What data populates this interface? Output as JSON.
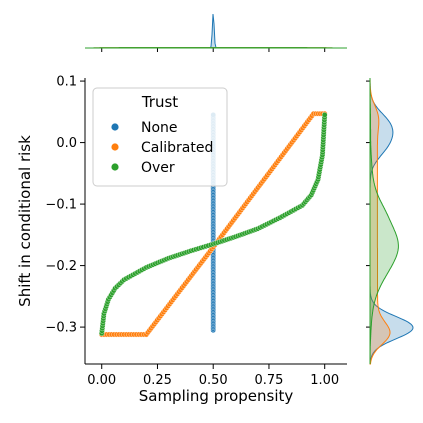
{
  "chart_data": {
    "type": "scatter",
    "title": "",
    "xlabel": "Sampling propensity",
    "ylabel": "Shift in conditional risk",
    "xlim": [
      -0.075,
      1.1
    ],
    "ylim": [
      -0.36,
      0.105
    ],
    "x_ticks": [
      0.0,
      0.25,
      0.5,
      0.75,
      1.0
    ],
    "x_tick_labels": [
      "0.00",
      "0.25",
      "0.50",
      "0.75",
      "1.00"
    ],
    "y_ticks": [
      0.1,
      0.0,
      -0.1,
      -0.2,
      -0.3
    ],
    "y_tick_labels": [
      "0.1",
      "0.0",
      "−0.1",
      "−0.2",
      "−0.3"
    ],
    "grid": false,
    "legend": {
      "title": "Trust",
      "placement": "top-left",
      "entries": [
        "None",
        "Calibrated",
        "Over"
      ]
    },
    "marginals": {
      "top": "density of sampling propensity per series",
      "right": "density of shift in conditional risk per series"
    },
    "series": [
      {
        "name": "None",
        "color": "#1f77b4",
        "description": "vertical line of points at x = 0.5",
        "x_constant": 0.5,
        "y_range": [
          -0.305,
          0.045
        ]
      },
      {
        "name": "Calibrated",
        "color": "#ff7f0e",
        "description": "flat at -0.31 from x 0 to 0.2, linear rise to 0.045 at x 0.95, flat to x 1.0",
        "points": [
          [
            0.0,
            -0.312
          ],
          [
            0.2,
            -0.312
          ],
          [
            0.5,
            -0.17
          ],
          [
            0.95,
            0.047
          ],
          [
            1.0,
            0.047
          ]
        ]
      },
      {
        "name": "Over",
        "color": "#2ca02c",
        "description": "S-shaped curve from (0, -0.31) to (1, 0.045)",
        "points": [
          [
            0.0,
            -0.31
          ],
          [
            0.01,
            -0.278
          ],
          [
            0.03,
            -0.255
          ],
          [
            0.06,
            -0.237
          ],
          [
            0.1,
            -0.223
          ],
          [
            0.2,
            -0.203
          ],
          [
            0.3,
            -0.188
          ],
          [
            0.4,
            -0.176
          ],
          [
            0.5,
            -0.165
          ],
          [
            0.6,
            -0.153
          ],
          [
            0.7,
            -0.14
          ],
          [
            0.8,
            -0.122
          ],
          [
            0.9,
            -0.102
          ],
          [
            0.94,
            -0.085
          ],
          [
            0.97,
            -0.06
          ],
          [
            0.99,
            -0.02
          ],
          [
            1.0,
            0.045
          ]
        ]
      }
    ]
  }
}
